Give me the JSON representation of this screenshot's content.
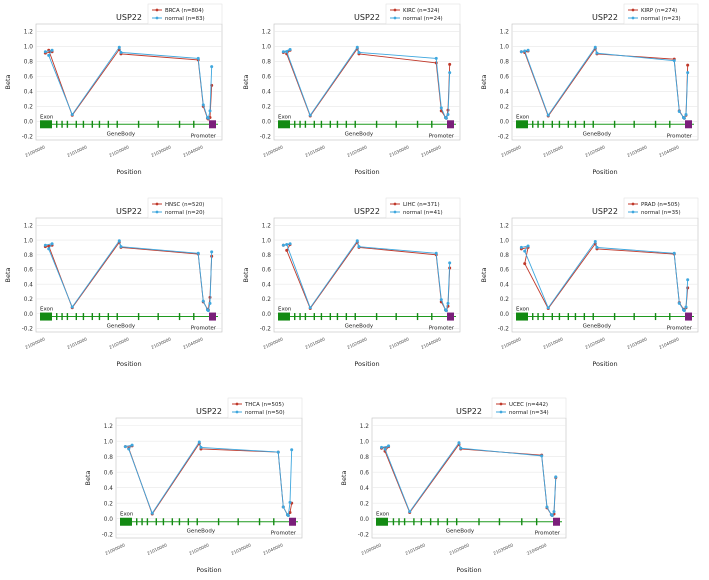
{
  "legend_colors": {
    "tumor": "#c0392b",
    "normal": "#3fa7de"
  },
  "structure_colors": {
    "exon": "#138a13",
    "promoter": "#7a1f7a",
    "genebody_line": "#1f9a1f"
  },
  "chart_data": [
    {
      "type": "line",
      "title": "USP22",
      "xlabel": "Position",
      "ylabel": "Beta",
      "ylim": [
        -0.25,
        1.3
      ],
      "yticks": [
        -0.2,
        0.0,
        0.2,
        0.4,
        0.6,
        0.8,
        1.0,
        1.2
      ],
      "xticks": [
        "21000000",
        "21010000",
        "21020000",
        "21030000",
        "21040000"
      ],
      "annotations": {
        "exon": "Exon",
        "genebody": "GeneBody",
        "promoter": "Promoter"
      },
      "legend_position": "top-right",
      "series": [
        {
          "name": "BRCA (n=804)",
          "values": [
            0.91,
            0.93,
            0.95,
            0.08,
            0.96,
            0.9,
            0.82,
            0.2,
            0.04,
            0.03,
            0.05,
            0.48
          ]
        },
        {
          "name": "normal (n=83)",
          "values": [
            0.93,
            0.95,
            0.88,
            0.09,
            0.99,
            0.92,
            0.84,
            0.22,
            0.05,
            0.04,
            0.14,
            0.73
          ]
        }
      ]
    },
    {
      "type": "line",
      "title": "USP22",
      "xlabel": "Position",
      "ylabel": "Beta",
      "ylim": [
        -0.25,
        1.3
      ],
      "yticks": [
        -0.2,
        0.0,
        0.2,
        0.4,
        0.6,
        0.8,
        1.0,
        1.2
      ],
      "xticks": [
        "21000000",
        "21010000",
        "21020000",
        "21030000",
        "21040000"
      ],
      "annotations": {
        "exon": "Exon",
        "genebody": "GeneBody",
        "promoter": "Promoter"
      },
      "legend_position": "top-right",
      "series": [
        {
          "name": "KIRC (n=324)",
          "values": [
            0.92,
            0.95,
            0.9,
            0.07,
            0.97,
            0.9,
            0.78,
            0.14,
            0.05,
            0.04,
            0.15,
            0.76
          ]
        },
        {
          "name": "normal (n=24)",
          "values": [
            0.93,
            0.96,
            0.93,
            0.08,
            0.99,
            0.92,
            0.84,
            0.18,
            0.05,
            0.04,
            0.09,
            0.65
          ]
        }
      ]
    },
    {
      "type": "line",
      "title": "USP22",
      "xlabel": "Position",
      "ylabel": "Beta",
      "ylim": [
        -0.25,
        1.3
      ],
      "yticks": [
        -0.2,
        0.0,
        0.2,
        0.4,
        0.6,
        0.8,
        1.0,
        1.2
      ],
      "xticks": [
        "21000000",
        "21010000",
        "21020000",
        "21030000",
        "21040000"
      ],
      "annotations": {
        "exon": "Exon",
        "genebody": "GeneBody",
        "promoter": "Promoter"
      },
      "legend_position": "top-right",
      "series": [
        {
          "name": "KIRP (n=274)",
          "values": [
            0.93,
            0.94,
            0.92,
            0.07,
            0.97,
            0.9,
            0.83,
            0.14,
            0.05,
            0.04,
            0.08,
            0.75
          ]
        },
        {
          "name": "normal (n=23)",
          "values": [
            0.93,
            0.95,
            0.94,
            0.08,
            0.99,
            0.91,
            0.81,
            0.13,
            0.05,
            0.04,
            0.09,
            0.65
          ]
        }
      ]
    },
    {
      "type": "line",
      "title": "USP22",
      "xlabel": "Position",
      "ylabel": "Beta",
      "ylim": [
        -0.25,
        1.3
      ],
      "yticks": [
        -0.2,
        0.0,
        0.2,
        0.4,
        0.6,
        0.8,
        1.0,
        1.2
      ],
      "xticks": [
        "21000000",
        "21010000",
        "21020000",
        "21030000",
        "21040000"
      ],
      "annotations": {
        "exon": "Exon",
        "genebody": "GeneBody",
        "promoter": "Promoter"
      },
      "legend_position": "top-right",
      "series": [
        {
          "name": "HNSC (n=520)",
          "values": [
            0.91,
            0.93,
            0.92,
            0.08,
            0.97,
            0.9,
            0.81,
            0.16,
            0.06,
            0.05,
            0.22,
            0.78
          ]
        },
        {
          "name": "normal (n=20)",
          "values": [
            0.93,
            0.95,
            0.88,
            0.09,
            0.99,
            0.91,
            0.82,
            0.17,
            0.05,
            0.04,
            0.14,
            0.84
          ]
        }
      ]
    },
    {
      "type": "line",
      "title": "USP22",
      "xlabel": "Position",
      "ylabel": "Beta",
      "ylim": [
        -0.25,
        1.3
      ],
      "yticks": [
        -0.2,
        0.0,
        0.2,
        0.4,
        0.6,
        0.8,
        1.0,
        1.2
      ],
      "xticks": [
        "21000000",
        "21010000",
        "21020000",
        "21030000",
        "21040000"
      ],
      "annotations": {
        "exon": "Exon",
        "genebody": "GeneBody",
        "promoter": "Promoter"
      },
      "legend_position": "top-right",
      "series": [
        {
          "name": "LIHC (n=371)",
          "values": [
            0.93,
            0.94,
            0.86,
            0.07,
            0.97,
            0.9,
            0.8,
            0.16,
            0.05,
            0.04,
            0.1,
            0.62
          ]
        },
        {
          "name": "normal (n=41)",
          "values": [
            0.93,
            0.95,
            0.94,
            0.08,
            0.99,
            0.91,
            0.82,
            0.19,
            0.05,
            0.04,
            0.14,
            0.69
          ]
        }
      ]
    },
    {
      "type": "line",
      "title": "USP22",
      "xlabel": "Position",
      "ylabel": "Beta",
      "ylim": [
        -0.25,
        1.3
      ],
      "yticks": [
        -0.2,
        0.0,
        0.2,
        0.4,
        0.6,
        0.8,
        1.0,
        1.2
      ],
      "xticks": [
        "21000000",
        "21010000",
        "21020000",
        "21030000",
        "21040000"
      ],
      "annotations": {
        "exon": "Exon",
        "genebody": "GeneBody",
        "promoter": "Promoter"
      },
      "legend_position": "top-right",
      "series": [
        {
          "name": "PRAD (n=505)",
          "values": [
            0.88,
            0.9,
            0.68,
            0.07,
            0.95,
            0.88,
            0.81,
            0.15,
            0.06,
            0.05,
            0.08,
            0.35
          ]
        },
        {
          "name": "normal (n=35)",
          "values": [
            0.9,
            0.92,
            0.85,
            0.08,
            0.98,
            0.9,
            0.82,
            0.14,
            0.05,
            0.04,
            0.09,
            0.46
          ]
        }
      ]
    },
    {
      "type": "line",
      "title": "USP22",
      "xlabel": "Position",
      "ylabel": "Beta",
      "ylim": [
        -0.25,
        1.3
      ],
      "yticks": [
        -0.2,
        0.0,
        0.2,
        0.4,
        0.6,
        0.8,
        1.0,
        1.2
      ],
      "xticks": [
        "21000000",
        "21010000",
        "21020000",
        "21030000",
        "21040000"
      ],
      "annotations": {
        "exon": "Exon",
        "genebody": "GeneBody",
        "promoter": "Promoter"
      },
      "legend_position": "top-right",
      "series": [
        {
          "name": "THCA (n=505)",
          "values": [
            0.93,
            0.94,
            0.91,
            0.06,
            0.97,
            0.9,
            0.86,
            0.15,
            0.05,
            0.04,
            0.08,
            0.2
          ]
        },
        {
          "name": "normal (n=50)",
          "values": [
            0.93,
            0.95,
            0.9,
            0.07,
            0.99,
            0.92,
            0.86,
            0.15,
            0.05,
            0.04,
            0.21,
            0.89
          ]
        }
      ]
    },
    {
      "type": "line",
      "title": "USP22",
      "xlabel": "Position",
      "ylabel": "Beta",
      "ylim": [
        -0.25,
        1.3
      ],
      "yticks": [
        -0.2,
        0.0,
        0.2,
        0.4,
        0.6,
        0.8,
        1.0,
        1.2
      ],
      "xticks": [
        "21000000",
        "21010000",
        "21020000",
        "21030000",
        "21040000"
      ],
      "annotations": {
        "exon": "Exon",
        "genebody": "GeneBody",
        "promoter": "Promoter"
      },
      "legend_position": "top-right",
      "series": [
        {
          "name": "UCEC (n=442)",
          "values": [
            0.91,
            0.93,
            0.87,
            0.08,
            0.96,
            0.9,
            0.82,
            0.14,
            0.05,
            0.04,
            0.06,
            0.53
          ]
        },
        {
          "name": "normal (n=34)",
          "values": [
            0.92,
            0.94,
            0.9,
            0.09,
            0.98,
            0.91,
            0.81,
            0.15,
            0.05,
            0.04,
            0.09,
            0.54
          ]
        }
      ]
    }
  ]
}
